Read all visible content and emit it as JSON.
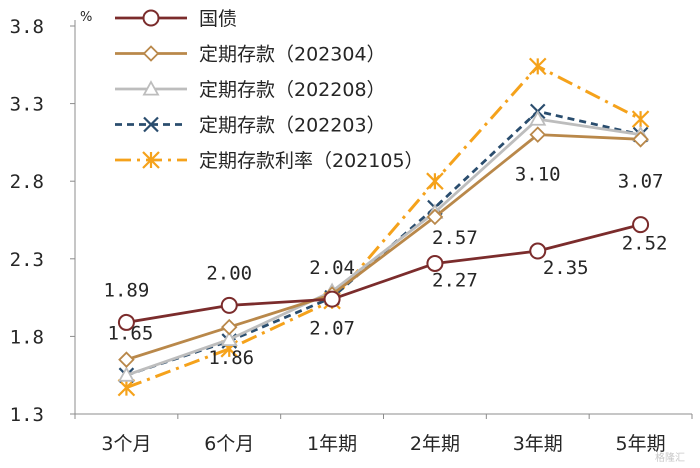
{
  "chart_data": {
    "type": "line",
    "unit_label": "%",
    "categories": [
      "3个月",
      "6个月",
      "1年期",
      "2年期",
      "3年期",
      "5年期"
    ],
    "ylim": [
      1.3,
      3.8
    ],
    "yticks": [
      "1.3",
      "1.8",
      "2.3",
      "2.8",
      "3.3",
      "3.8"
    ],
    "grid": false,
    "legend_position": "top-left",
    "series": [
      {
        "name": "国债",
        "values": [
          1.89,
          2.0,
          2.04,
          2.27,
          2.35,
          2.52
        ],
        "color": "#7b2c2c",
        "marker": "circle",
        "dash": "solid"
      },
      {
        "name": "定期存款（202304）",
        "values": [
          1.65,
          1.86,
          2.07,
          2.57,
          3.1,
          3.07
        ],
        "color": "#b9884a",
        "marker": "diamond",
        "dash": "solid"
      },
      {
        "name": "定期存款（202208）",
        "values": [
          1.55,
          1.78,
          2.09,
          2.6,
          3.2,
          3.1
        ],
        "color": "#bdbdbd",
        "marker": "triangle",
        "dash": "solid"
      },
      {
        "name": "定期存款（202203）",
        "values": [
          1.55,
          1.77,
          2.05,
          2.63,
          3.25,
          3.1
        ],
        "color": "#2a4d6e",
        "marker": "x",
        "dash": "dashed"
      },
      {
        "name": "定期存款利率（202105）",
        "values": [
          1.47,
          1.72,
          2.03,
          2.8,
          3.54,
          3.2
        ],
        "color": "#f5a21b",
        "marker": "star",
        "dash": "dashdot"
      }
    ],
    "data_labels": [
      {
        "series": 0,
        "index": 0,
        "text": "1.89"
      },
      {
        "series": 0,
        "index": 1,
        "text": "2.00"
      },
      {
        "series": 0,
        "index": 2,
        "text": "2.04"
      },
      {
        "series": 0,
        "index": 3,
        "text": "2.27"
      },
      {
        "series": 0,
        "index": 4,
        "text": "2.35"
      },
      {
        "series": 0,
        "index": 5,
        "text": "2.52"
      },
      {
        "series": 1,
        "index": 0,
        "text": "1.65"
      },
      {
        "series": 1,
        "index": 1,
        "text": "1.86"
      },
      {
        "series": 1,
        "index": 2,
        "text": "2.07"
      },
      {
        "series": 1,
        "index": 3,
        "text": "2.57"
      },
      {
        "series": 1,
        "index": 4,
        "text": "3.10"
      },
      {
        "series": 1,
        "index": 5,
        "text": "3.07"
      }
    ]
  },
  "watermark": "格隆汇"
}
